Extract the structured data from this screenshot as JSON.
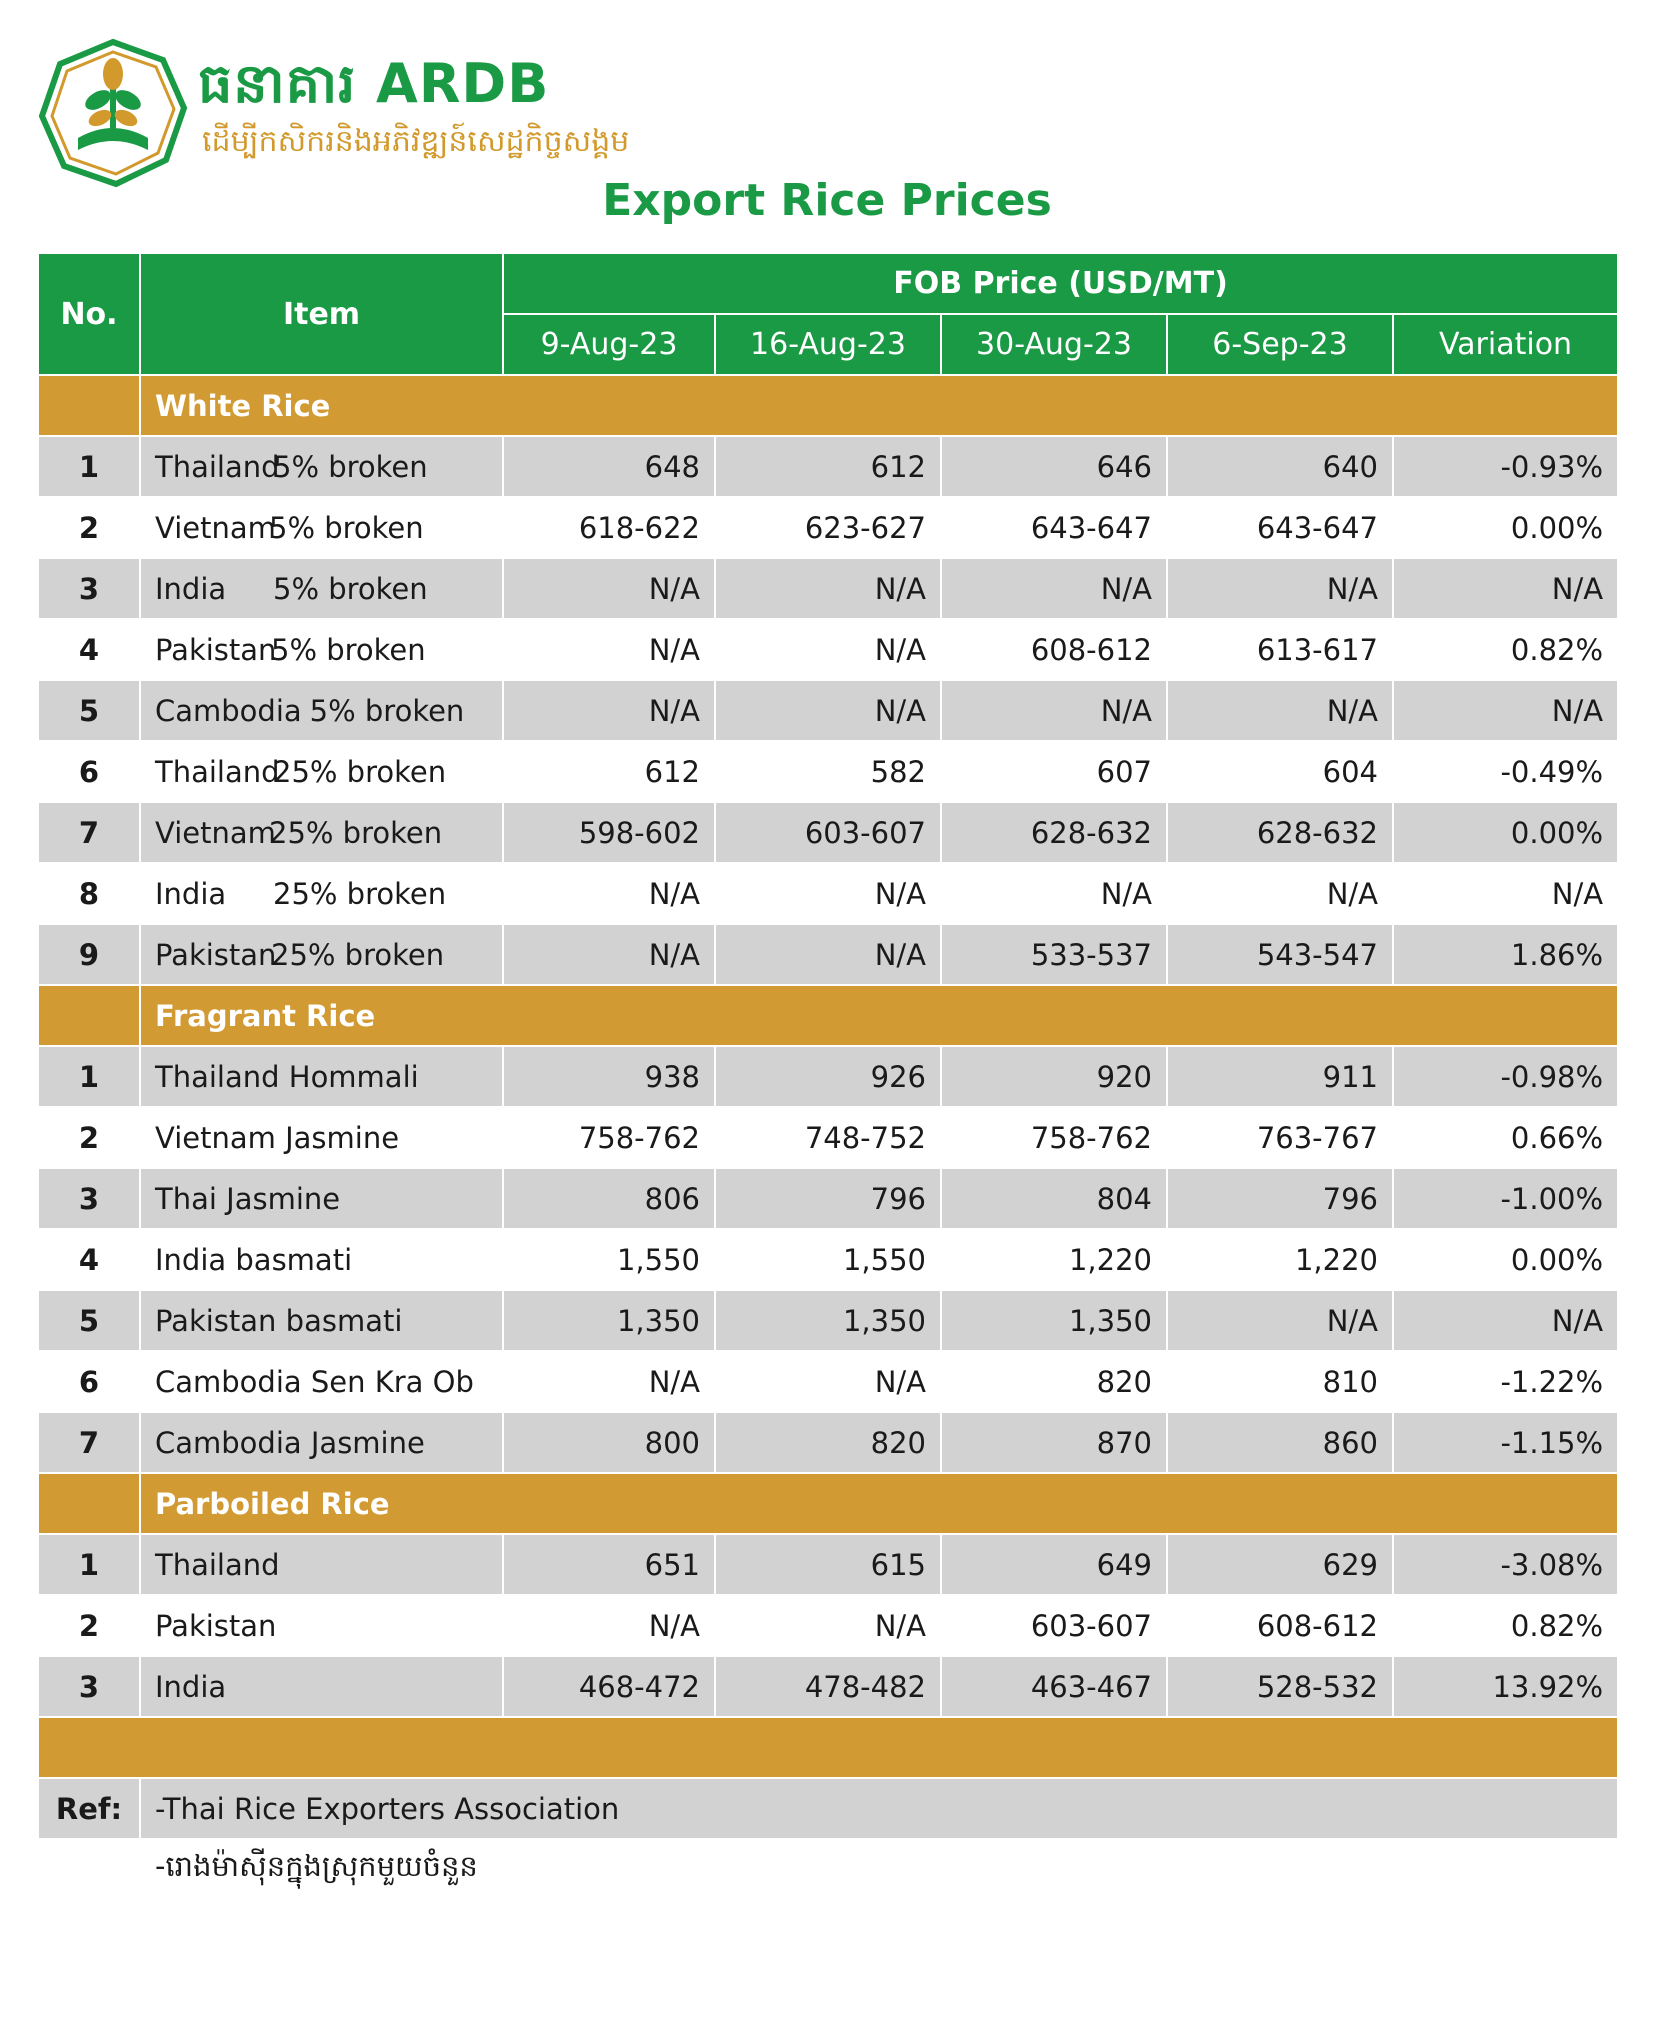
{
  "brand": {
    "name": "ធនាគារ ARDB",
    "tagline": "ដើម្បីកសិករនិងអភិវឌ្ឍន៍សេដ្ឋកិច្ចសង្គម"
  },
  "title": "Export Rice Prices",
  "table": {
    "col_no": "No.",
    "col_item": "Item",
    "group_header": "FOB Price (USD/MT)",
    "date_cols": [
      "9-Aug-23",
      "16-Aug-23",
      "30-Aug-23",
      "6-Sep-23"
    ],
    "col_variation": "Variation"
  },
  "sections": [
    {
      "name": "White Rice",
      "rows": [
        {
          "no": "1",
          "country": "Thailand",
          "grade": "5% broken",
          "v": [
            "648",
            "612",
            "646",
            "640"
          ],
          "variation": "-0.93%"
        },
        {
          "no": "2",
          "country": "Vietnam",
          "grade": "5% broken",
          "v": [
            "618-622",
            "623-627",
            "643-647",
            "643-647"
          ],
          "variation": "0.00%"
        },
        {
          "no": "3",
          "country": "India",
          "grade": "5% broken",
          "v": [
            "N/A",
            "N/A",
            "N/A",
            "N/A"
          ],
          "variation": "N/A"
        },
        {
          "no": "4",
          "country": "Pakistan",
          "grade": "5% broken",
          "v": [
            "N/A",
            "N/A",
            "608-612",
            "613-617"
          ],
          "variation": "0.82%"
        },
        {
          "no": "5",
          "country": "Cambodia",
          "grade": "5% broken",
          "v": [
            "N/A",
            "N/A",
            "N/A",
            "N/A"
          ],
          "variation": "N/A"
        },
        {
          "no": "6",
          "country": "Thailand",
          "grade": "25% broken",
          "v": [
            "612",
            "582",
            "607",
            "604"
          ],
          "variation": "-0.49%"
        },
        {
          "no": "7",
          "country": "Vietnam",
          "grade": "25% broken",
          "v": [
            "598-602",
            "603-607",
            "628-632",
            "628-632"
          ],
          "variation": "0.00%"
        },
        {
          "no": "8",
          "country": "India",
          "grade": "25% broken",
          "v": [
            "N/A",
            "N/A",
            "N/A",
            "N/A"
          ],
          "variation": "N/A"
        },
        {
          "no": "9",
          "country": "Pakistan",
          "grade": "25% broken",
          "v": [
            "N/A",
            "N/A",
            "533-537",
            "543-547"
          ],
          "variation": "1.86%"
        }
      ]
    },
    {
      "name": "Fragrant Rice",
      "rows": [
        {
          "no": "1",
          "country": "Thailand Hommali",
          "grade": "",
          "v": [
            "938",
            "926",
            "920",
            "911"
          ],
          "variation": "-0.98%"
        },
        {
          "no": "2",
          "country": "Vietnam Jasmine",
          "grade": "",
          "v": [
            "758-762",
            "748-752",
            "758-762",
            "763-767"
          ],
          "variation": "0.66%"
        },
        {
          "no": "3",
          "country": "Thai Jasmine",
          "grade": "",
          "v": [
            "806",
            "796",
            "804",
            "796"
          ],
          "variation": "-1.00%"
        },
        {
          "no": "4",
          "country": "India basmati",
          "grade": "",
          "v": [
            "1,550",
            "1,550",
            "1,220",
            "1,220"
          ],
          "variation": "0.00%"
        },
        {
          "no": "5",
          "country": "Pakistan basmati",
          "grade": "",
          "v": [
            "1,350",
            "1,350",
            "1,350",
            "N/A"
          ],
          "variation": "N/A"
        },
        {
          "no": "6",
          "country": "Cambodia Sen Kra Ob",
          "grade": "",
          "v": [
            "N/A",
            "N/A",
            "820",
            "810"
          ],
          "variation": "-1.22%"
        },
        {
          "no": "7",
          "country": "Cambodia Jasmine",
          "grade": "",
          "v": [
            "800",
            "820",
            "870",
            "860"
          ],
          "variation": "-1.15%"
        }
      ]
    },
    {
      "name": "Parboiled Rice",
      "rows": [
        {
          "no": "1",
          "country": "Thailand",
          "grade": "",
          "v": [
            "651",
            "615",
            "649",
            "629"
          ],
          "variation": "-3.08%"
        },
        {
          "no": "2",
          "country": "Pakistan",
          "grade": "",
          "v": [
            "N/A",
            "N/A",
            "603-607",
            "608-612"
          ],
          "variation": "0.82%"
        },
        {
          "no": "3",
          "country": "India",
          "grade": "",
          "v": [
            "468-472",
            "478-482",
            "463-467",
            "528-532"
          ],
          "variation": "13.92%"
        }
      ]
    }
  ],
  "ref": {
    "label": "Ref:",
    "lines": [
      "-Thai Rice Exporters Association",
      "-រោងម៉ាស៊ីនក្នុងស្រុកមួយចំនួន"
    ]
  },
  "colors": {
    "green": "#1a9a45",
    "gold": "#d29a32",
    "gray": "#d2d2d2"
  }
}
